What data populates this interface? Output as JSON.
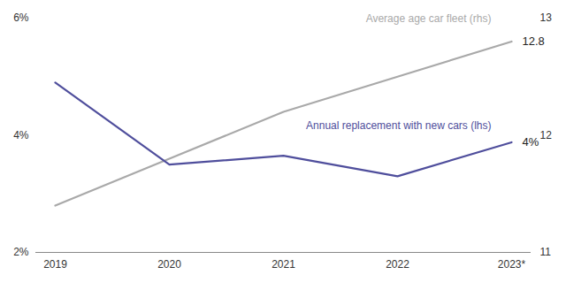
{
  "chart_data": {
    "type": "line",
    "categories": [
      "2019",
      "2020",
      "2021",
      "2022",
      "2023*"
    ],
    "ylim": [
      2,
      6
    ],
    "yticks": [
      {
        "value": 2,
        "label": "2%"
      },
      {
        "value": 4,
        "label": "4%"
      },
      {
        "value": 6,
        "label": "6%"
      }
    ],
    "y2lim": [
      11,
      13
    ],
    "y2ticks": [
      11,
      12,
      13
    ],
    "grid": false,
    "series": [
      {
        "name": "Average age car fleet (rhs)",
        "color": "#a9a9a9",
        "axis": "y2",
        "values": [
          11.4,
          11.8,
          12.2,
          12.5,
          12.8
        ]
      },
      {
        "name": "Annual replacement with new cars (lhs)",
        "color": "#4f4e9c",
        "values": [
          4.9,
          3.5,
          3.65,
          3.3,
          3.88
        ]
      }
    ],
    "annotations": [
      {
        "text": "12.8",
        "x": "2023*",
        "y": 12.8,
        "axis": "y2"
      },
      {
        "text": "4%",
        "x": "2023*",
        "y": 3.88
      }
    ]
  }
}
